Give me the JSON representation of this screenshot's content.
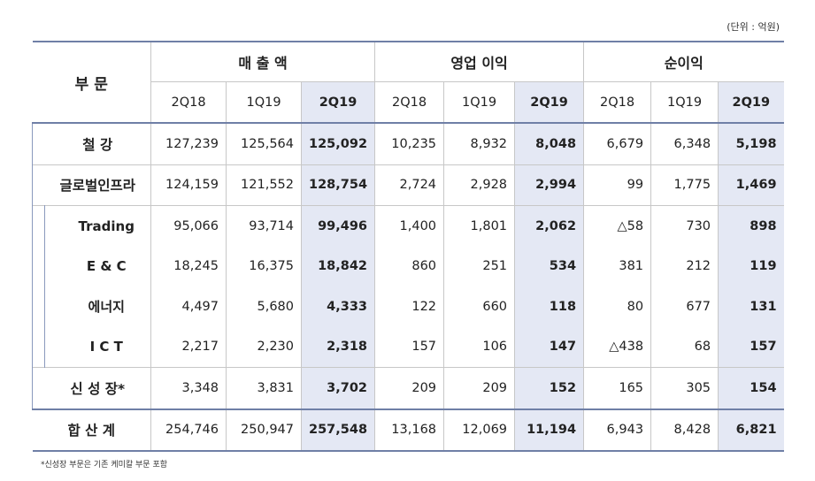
{
  "unit_label": "(단위 : 억원)",
  "footnote": "*신성장 부문은 기존 케미칼 부문 포함",
  "header": {
    "segment": "부 문",
    "groups": [
      "매 출 액",
      "영업 이익",
      "순이익"
    ],
    "periods": [
      "2Q18",
      "1Q19",
      "2Q19"
    ]
  },
  "rows": [
    {
      "label": "철  강",
      "values": [
        "127,239",
        "125,564",
        "125,092",
        "10,235",
        "8,932",
        "8,048",
        "6,679",
        "6,348",
        "5,198"
      ]
    },
    {
      "label": "글로벌인프라",
      "values": [
        "124,159",
        "121,552",
        "128,754",
        "2,724",
        "2,928",
        "2,994",
        "99",
        "1,775",
        "1,469"
      ]
    },
    {
      "label": "Trading",
      "values": [
        "95,066",
        "93,714",
        "99,496",
        "1,400",
        "1,801",
        "2,062",
        "△58",
        "730",
        "898"
      ]
    },
    {
      "label": "E  & C",
      "values": [
        "18,245",
        "16,375",
        "18,842",
        "860",
        "251",
        "534",
        "381",
        "212",
        "119"
      ]
    },
    {
      "label": "에너지",
      "values": [
        "4,497",
        "5,680",
        "4,333",
        "122",
        "660",
        "118",
        "80",
        "677",
        "131"
      ]
    },
    {
      "label": "I  C  T",
      "values": [
        "2,217",
        "2,230",
        "2,318",
        "157",
        "106",
        "147",
        "△438",
        "68",
        "157"
      ]
    },
    {
      "label": "신 성 장*",
      "values": [
        "3,348",
        "3,831",
        "3,702",
        "209",
        "209",
        "152",
        "165",
        "305",
        "154"
      ]
    },
    {
      "label": "합 산  계",
      "values": [
        "254,746",
        "250,947",
        "257,548",
        "13,168",
        "12,069",
        "11,194",
        "6,943",
        "8,428",
        "6,821"
      ]
    }
  ]
}
